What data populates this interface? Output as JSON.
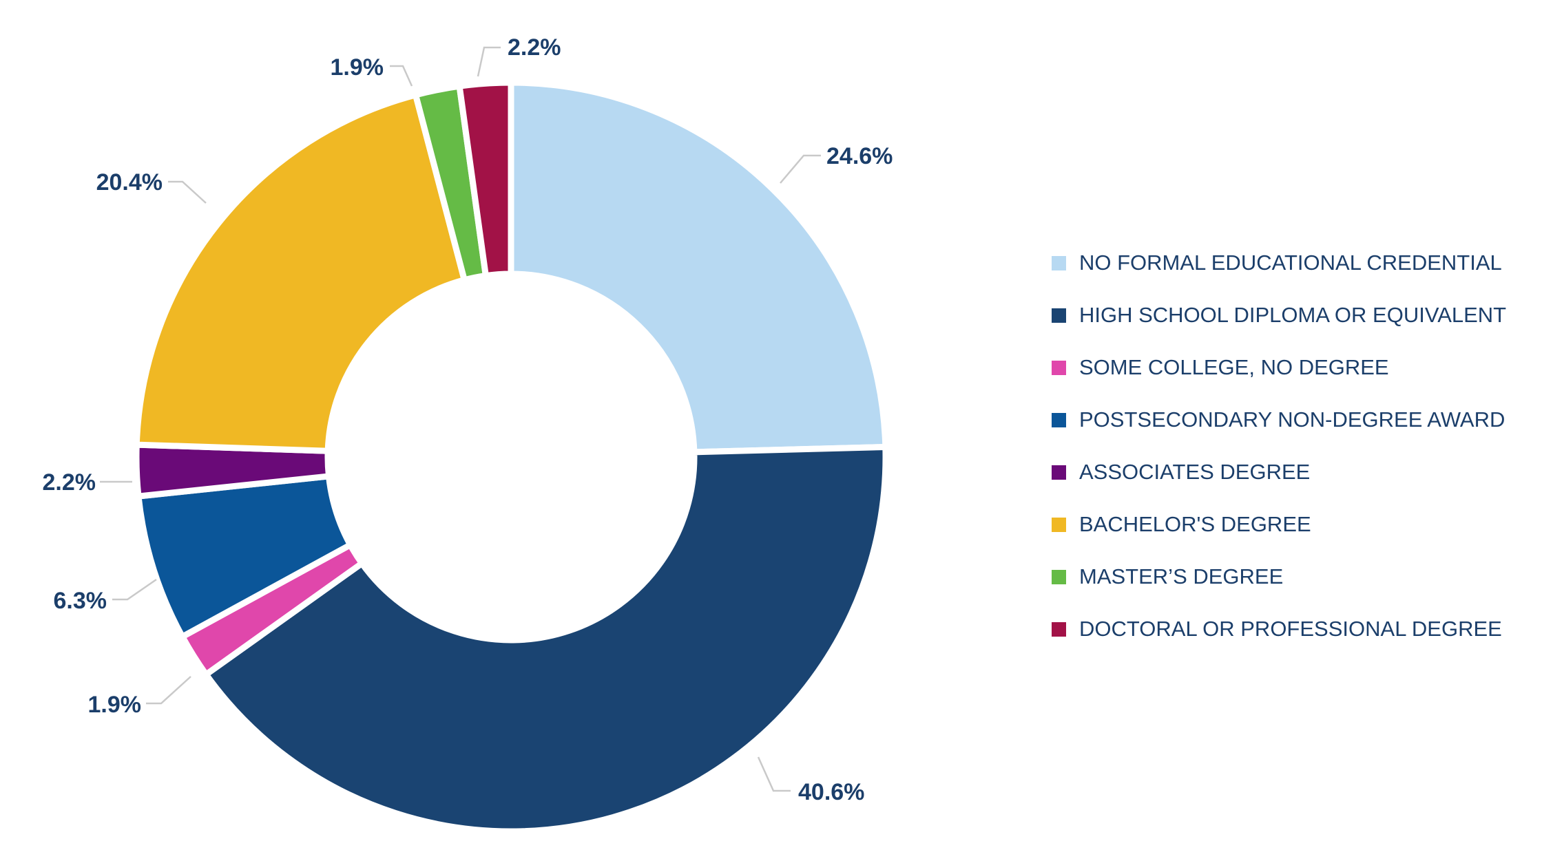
{
  "chart_data": {
    "type": "pie",
    "subtype": "donut",
    "title": "",
    "categories": [
      "NO FORMAL EDUCATIONAL CREDENTIAL",
      "HIGH SCHOOL DIPLOMA OR EQUIVALENT",
      "SOME COLLEGE, NO DEGREE",
      "POSTSECONDARY NON-DEGREE AWARD",
      "ASSOCIATES DEGREE",
      "BACHELOR'S DEGREE",
      "MASTER’S DEGREE",
      "DOCTORAL OR PROFESSIONAL DEGREE"
    ],
    "values": [
      24.6,
      40.6,
      1.9,
      6.3,
      2.2,
      20.4,
      1.9,
      2.2
    ],
    "data_labels": [
      "24.6%",
      "40.6%",
      "1.9%",
      "6.3%",
      "2.2%",
      "20.4%",
      "1.9%",
      "2.2%"
    ],
    "colors": [
      "#b7d9f2",
      "#1a4472",
      "#e047ab",
      "#0b5699",
      "#6a0a78",
      "#f0b824",
      "#65bb46",
      "#a21247"
    ],
    "label_color": "#1b3e6a",
    "leader_color": "#c9c9c9",
    "start_angle": "12 o'clock",
    "direction": "clockwise",
    "legend_position": "right"
  }
}
